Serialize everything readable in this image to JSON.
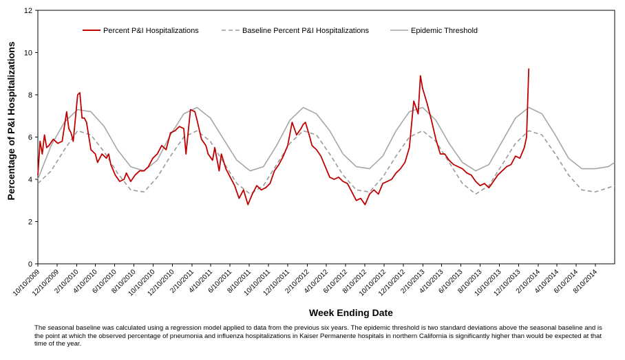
{
  "chart_data": {
    "type": "line",
    "ylabel": "Percentage of P&I Hospitalizations",
    "xlabel": "Week Ending Date",
    "ylim": [
      0,
      12
    ],
    "yticks": [
      0,
      2,
      4,
      6,
      8,
      10,
      12
    ],
    "x_tick_labels": [
      "10/10/2009",
      "12/10/2009",
      "2/10/2010",
      "4/10/2010",
      "6/10/2010",
      "8/10/2010",
      "10/10/2010",
      "12/10/2010",
      "2/10/2011",
      "4/10/2011",
      "6/10/2011",
      "8/10/2011",
      "10/10/2011",
      "12/10/2011",
      "2/10/2012",
      "4/10/2012",
      "6/10/2012",
      "8/10/2012",
      "10/10/2012",
      "12/10/2012",
      "2/10/2013",
      "4/10/2013",
      "6/10/2013",
      "8/10/2013",
      "10/10/2013",
      "12/10/2013",
      "2/10/2014",
      "4/10/2014",
      "6/10/2014",
      "8/10/2014"
    ],
    "x_start": "10/10/2009",
    "x_end": "10/10/2014",
    "grid": false,
    "legend_position": "top",
    "series": [
      {
        "name": "Percent P&I Hospitalizations",
        "color": "#c00000",
        "style": "solid",
        "x": [
          "10/10/2009",
          "10/17/2009",
          "10/24/2009",
          "10/31/2009",
          "11/7/2009",
          "11/14/2009",
          "11/28/2009",
          "12/12/2009",
          "12/26/2009",
          "1/9/2010",
          "1/16/2010",
          "1/23/2010",
          "1/30/2010",
          "2/13/2010",
          "2/20/2010",
          "2/27/2010",
          "3/6/2010",
          "3/13/2010",
          "3/27/2010",
          "4/10/2010",
          "4/17/2010",
          "5/1/2010",
          "5/15/2010",
          "5/22/2010",
          "5/29/2010",
          "6/12/2010",
          "6/26/2010",
          "7/10/2010",
          "7/17/2010",
          "7/31/2010",
          "8/14/2010",
          "8/28/2010",
          "9/11/2010",
          "9/25/2010",
          "10/9/2010",
          "10/23/2010",
          "11/6/2010",
          "11/20/2010",
          "12/4/2010",
          "12/18/2010",
          "1/1/2011",
          "1/15/2011",
          "1/22/2011",
          "2/5/2011",
          "2/19/2011",
          "2/26/2011",
          "3/12/2011",
          "3/26/2011",
          "4/2/2011",
          "4/16/2011",
          "4/23/2011",
          "5/7/2011",
          "5/14/2011",
          "5/28/2011",
          "6/11/2011",
          "6/25/2011",
          "7/9/2011",
          "7/23/2011",
          "8/6/2011",
          "8/20/2011",
          "9/3/2011",
          "9/17/2011",
          "10/1/2011",
          "10/15/2011",
          "10/29/2011",
          "11/12/2011",
          "11/26/2011",
          "12/10/2011",
          "12/24/2011",
          "1/7/2012",
          "1/21/2012",
          "1/28/2012",
          "2/4/2012",
          "2/18/2012",
          "2/25/2012",
          "3/10/2012",
          "3/24/2012",
          "4/7/2012",
          "4/21/2012",
          "5/5/2012",
          "5/19/2012",
          "6/2/2012",
          "6/16/2012",
          "6/30/2012",
          "7/14/2012",
          "7/28/2012",
          "8/11/2012",
          "8/25/2012",
          "9/8/2012",
          "9/22/2012",
          "10/6/2012",
          "10/20/2012",
          "11/3/2012",
          "11/17/2012",
          "12/1/2012",
          "12/15/2012",
          "12/29/2012",
          "1/12/2013",
          "1/26/2013",
          "2/2/2013",
          "2/9/2013",
          "2/23/2013",
          "3/9/2013",
          "3/23/2013",
          "4/6/2013",
          "4/20/2013",
          "5/4/2013",
          "5/18/2013",
          "6/1/2013",
          "6/15/2013",
          "6/29/2013",
          "7/13/2013",
          "7/27/2013",
          "8/10/2013",
          "8/24/2013",
          "9/7/2013",
          "9/21/2013",
          "10/5/2013",
          "10/19/2013",
          "11/2/2013",
          "11/16/2013",
          "11/30/2013",
          "12/14/2013",
          "12/28/2013",
          "1/4/2014",
          "1/11/2014"
        ],
        "values": [
          4.2,
          5.8,
          5.2,
          6.1,
          5.5,
          5.6,
          5.9,
          5.7,
          5.8,
          7.2,
          6.4,
          6.2,
          5.8,
          8.0,
          8.1,
          6.9,
          6.9,
          6.7,
          5.4,
          5.2,
          4.8,
          5.2,
          5.0,
          5.2,
          4.7,
          4.2,
          3.9,
          4.0,
          4.3,
          3.9,
          4.2,
          4.4,
          4.4,
          4.6,
          5.0,
          5.2,
          5.6,
          5.4,
          6.2,
          6.3,
          6.5,
          6.4,
          5.2,
          7.3,
          7.2,
          6.8,
          5.9,
          5.6,
          5.2,
          4.9,
          5.5,
          4.4,
          5.2,
          4.5,
          4.1,
          3.7,
          3.1,
          3.5,
          2.8,
          3.3,
          3.7,
          3.5,
          3.6,
          3.8,
          4.4,
          4.7,
          5.1,
          5.6,
          6.7,
          6.1,
          6.4,
          6.6,
          6.7,
          6.0,
          5.6,
          5.4,
          5.1,
          4.6,
          4.1,
          4.0,
          4.1,
          3.9,
          3.8,
          3.4,
          3.0,
          3.1,
          2.8,
          3.3,
          3.5,
          3.3,
          3.8,
          3.9,
          4.0,
          4.3,
          4.5,
          4.8,
          5.5,
          7.7,
          7.1,
          8.9,
          8.3,
          7.6,
          6.8,
          5.9,
          5.2,
          5.2,
          4.9,
          4.7,
          4.6,
          4.5,
          4.3,
          4.2,
          3.9,
          3.7,
          3.8,
          3.6,
          3.9,
          4.2,
          4.4,
          4.6,
          4.7,
          5.1,
          5.0,
          5.5,
          6.0,
          9.25
        ]
      },
      {
        "name": "Baseline Percent P&I Hospitalizations",
        "color": "#999999",
        "style": "dashed",
        "x": [
          "10/10/2009",
          "11/21/2009",
          "1/2/2010",
          "2/13/2010",
          "3/27/2010",
          "5/8/2010",
          "6/19/2010",
          "7/31/2010",
          "9/11/2010",
          "10/23/2010",
          "12/4/2010",
          "1/15/2011",
          "2/26/2011",
          "4/9/2011",
          "5/21/2011",
          "7/2/2011",
          "8/13/2011",
          "9/24/2011",
          "11/5/2011",
          "12/17/2011",
          "1/28/2012",
          "3/10/2012",
          "4/21/2012",
          "6/2/2012",
          "7/14/2012",
          "8/25/2012",
          "10/6/2012",
          "11/17/2012",
          "12/29/2012",
          "2/9/2013",
          "3/23/2013",
          "5/4/2013",
          "6/15/2013",
          "7/27/2013",
          "9/7/2013",
          "10/19/2013",
          "11/30/2013",
          "1/11/2014",
          "2/22/2014",
          "4/5/2014",
          "5/17/2014",
          "6/28/2014",
          "8/9/2014",
          "9/20/2014",
          "10/10/2014"
        ],
        "values": [
          3.8,
          4.4,
          5.4,
          6.3,
          6.1,
          5.3,
          4.3,
          3.5,
          3.4,
          4.1,
          5.1,
          6.0,
          6.3,
          5.8,
          4.8,
          3.8,
          3.3,
          3.7,
          4.7,
          5.7,
          6.3,
          6.1,
          5.2,
          4.2,
          3.5,
          3.4,
          4.1,
          5.1,
          6.0,
          6.3,
          5.8,
          4.8,
          3.8,
          3.3,
          3.7,
          4.7,
          5.7,
          6.3,
          6.1,
          5.2,
          4.2,
          3.5,
          3.4,
          3.6,
          3.7
        ]
      },
      {
        "name": "Epidemic Threshold",
        "color": "#a6a6a6",
        "style": "solid",
        "x": [
          "10/10/2009",
          "11/21/2009",
          "1/2/2010",
          "2/13/2010",
          "3/27/2010",
          "5/8/2010",
          "6/19/2010",
          "7/31/2010",
          "9/11/2010",
          "10/23/2010",
          "12/4/2010",
          "1/15/2011",
          "2/26/2011",
          "4/9/2011",
          "5/21/2011",
          "7/2/2011",
          "8/13/2011",
          "9/24/2011",
          "11/5/2011",
          "12/17/2011",
          "1/28/2012",
          "3/10/2012",
          "4/21/2012",
          "6/2/2012",
          "7/14/2012",
          "8/25/2012",
          "10/6/2012",
          "11/17/2012",
          "12/29/2012",
          "2/9/2013",
          "3/23/2013",
          "5/4/2013",
          "6/15/2013",
          "7/27/2013",
          "9/7/2013",
          "10/19/2013",
          "11/30/2013",
          "1/11/2014",
          "2/22/2014",
          "4/5/2014",
          "5/17/2014",
          "6/28/2014",
          "8/9/2014",
          "9/20/2014",
          "10/10/2014"
        ],
        "values": [
          4.0,
          5.6,
          6.7,
          7.3,
          7.2,
          6.5,
          5.4,
          4.6,
          4.4,
          4.9,
          6.1,
          7.1,
          7.4,
          6.9,
          5.9,
          4.9,
          4.4,
          4.6,
          5.6,
          6.8,
          7.4,
          7.1,
          6.3,
          5.2,
          4.6,
          4.5,
          5.1,
          6.3,
          7.2,
          7.4,
          6.8,
          5.7,
          4.8,
          4.4,
          4.7,
          5.8,
          6.9,
          7.4,
          7.1,
          6.1,
          5.0,
          4.5,
          4.5,
          4.6,
          4.8
        ]
      }
    ]
  },
  "footnote": "The seasonal baseline was calculated using a regression model applied to data from the previous six years.  The epidemic threshold is two standard deviations above the seasonal baseline and is the point at which the observed percentage of pneumonia and influenza hospitalizations in Kaiser Permanente hospitals in northern California is significantly higher than would be expected at that time of the year."
}
